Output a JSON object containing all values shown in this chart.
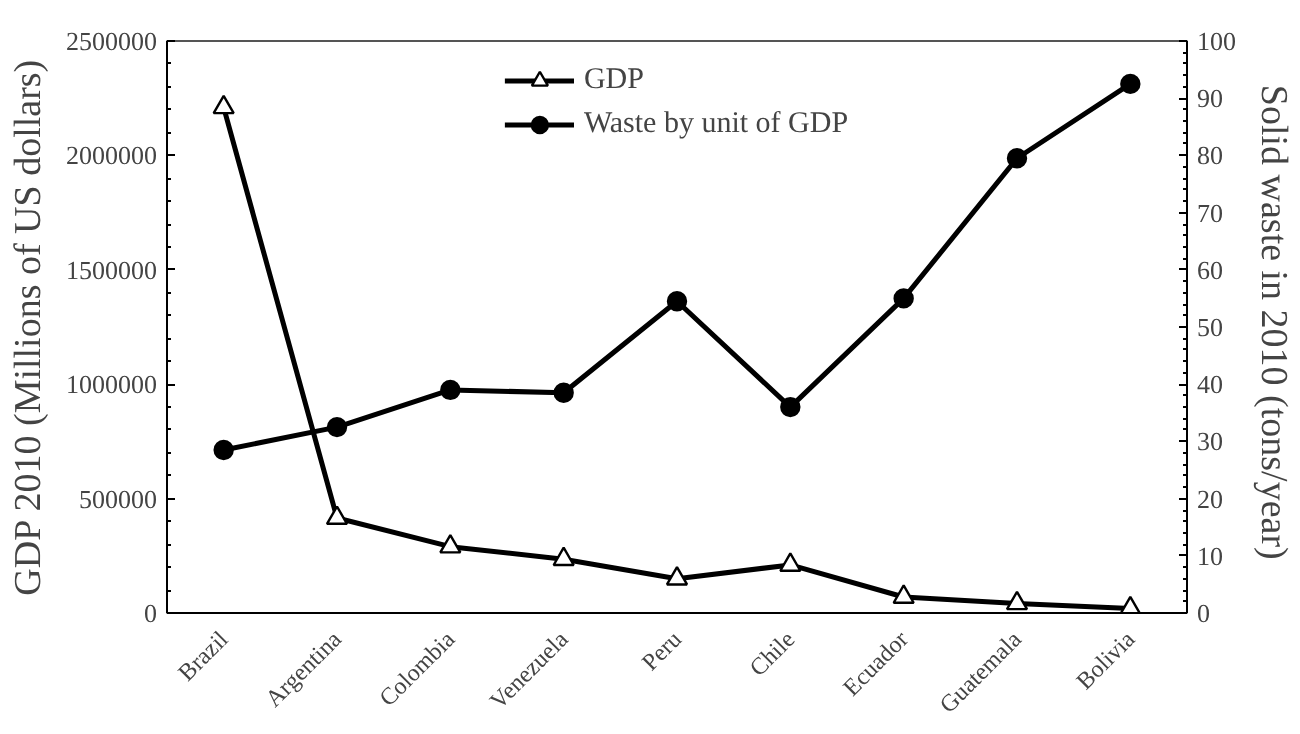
{
  "chart_data": {
    "type": "line",
    "categories": [
      "Brazil",
      "Argentina",
      "Colombia",
      "Venezuela",
      "Peru",
      "Chile",
      "Ecuador",
      "Guatemala",
      "Bolivia"
    ],
    "ylabel": "GDP 2010 (Millions of US dollars)",
    "y2label": "Solid  waste in 2010 (tons/year)",
    "ylim": [
      0,
      2500000
    ],
    "yticks": [
      0,
      500000,
      1000000,
      1500000,
      2000000,
      2500000
    ],
    "y2lim": [
      0,
      100
    ],
    "y2ticks": [
      0,
      10,
      20,
      30,
      40,
      50,
      60,
      70,
      80,
      90,
      100
    ],
    "legend": "top",
    "grid": false,
    "series": [
      {
        "name": "GDP",
        "color": "#000000",
        "marker": "triangle",
        "values": [
          2210000,
          415000,
          290000,
          235000,
          150000,
          210000,
          70000,
          42000,
          20000
        ]
      },
      {
        "name": "Waste by unit of GDP",
        "color": "#000000",
        "marker": "circle",
        "axis": "y2",
        "values": [
          28.5,
          32.5,
          39,
          38.5,
          54.5,
          36,
          55,
          79.5,
          92.5
        ]
      }
    ]
  }
}
